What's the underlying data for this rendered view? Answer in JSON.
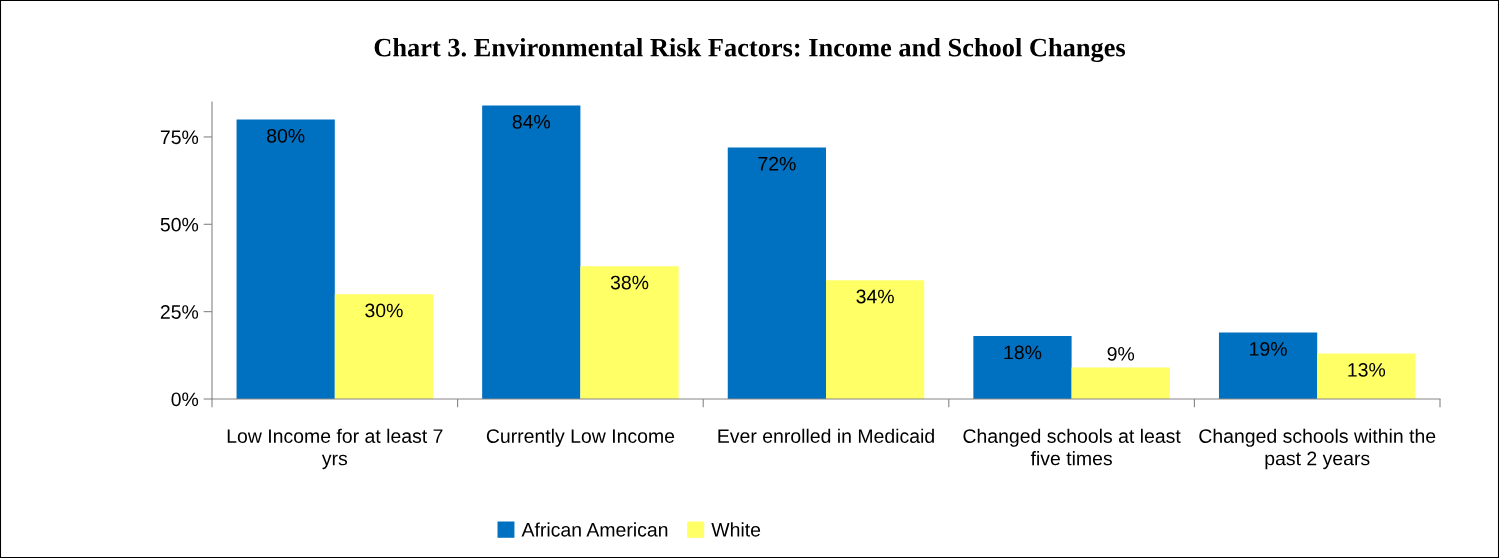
{
  "chart_data": {
    "type": "bar",
    "title": "Chart 3. Environmental Risk Factors: Income and School Changes",
    "categories": [
      "Low Income for at least 7 yrs",
      "Currently Low Income",
      "Ever enrolled in Medicaid",
      "Changed schools at least five times",
      "Changed schools within the past 2 years"
    ],
    "series": [
      {
        "name": "African American",
        "color": "#0070c0",
        "values": [
          80,
          84,
          72,
          18,
          19
        ],
        "value_labels": [
          "80%",
          "84%",
          "72%",
          "18%",
          "19%"
        ]
      },
      {
        "name": "White",
        "color": "#ffff66",
        "values": [
          30,
          38,
          34,
          9,
          13
        ],
        "value_labels": [
          "30%",
          "38%",
          "34%",
          "9%",
          "13%"
        ]
      }
    ],
    "ylim": [
      0,
      85
    ],
    "yticks": [
      {
        "value": 0,
        "label": "0%"
      },
      {
        "value": 25,
        "label": "25%"
      },
      {
        "value": 50,
        "label": "50%"
      },
      {
        "value": 75,
        "label": "75%"
      }
    ],
    "grid": false,
    "legend": "bottom"
  }
}
